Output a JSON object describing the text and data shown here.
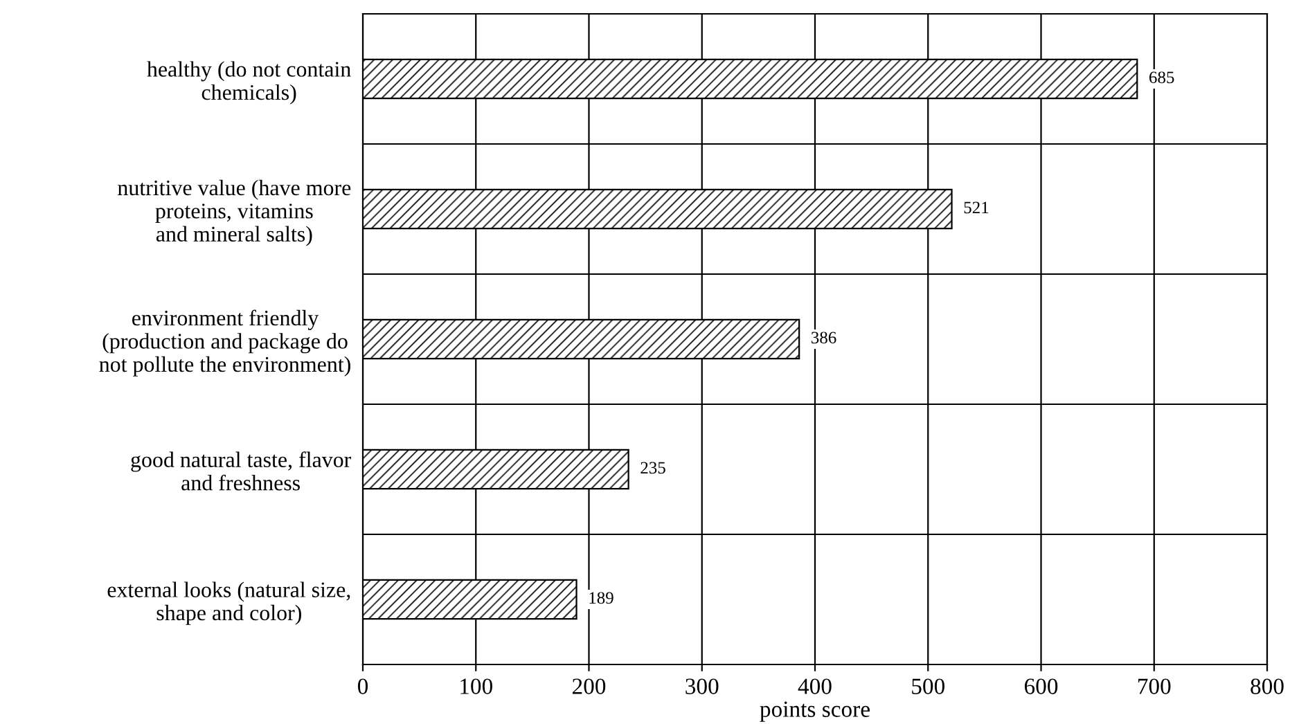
{
  "chart_data": {
    "type": "bar",
    "orientation": "horizontal",
    "xlabel": "points score",
    "categories": [
      "healthy (do not contain\nchemicals)",
      "nutritive value (have more\nproteins, vitamins\nand mineral salts)",
      "environment friendly\n(production and package do\nnot pollute the environment)",
      "good natural taste, flavor\nand freshness",
      "external looks (natural size,\nshape and color)"
    ],
    "values": [
      685,
      521,
      386,
      235,
      189
    ],
    "color": "#000000",
    "xlim": [
      0,
      800
    ],
    "xticks": [
      0,
      100,
      200,
      300,
      400,
      500,
      600,
      700,
      800
    ],
    "grid": true,
    "data_labels": true
  }
}
